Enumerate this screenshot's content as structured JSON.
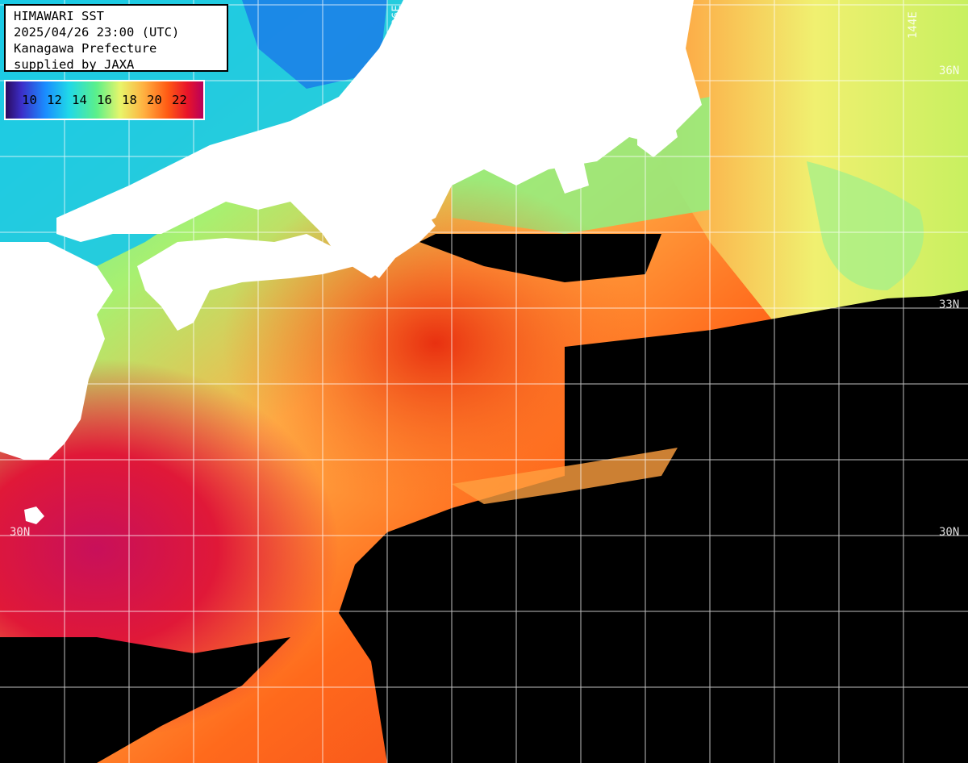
{
  "header": {
    "title": "HIMAWARI SST",
    "timestamp": "2025/04/26 23:00 (UTC)",
    "region": "Kanagawa Prefecture",
    "credit": "supplied by JAXA"
  },
  "legend": {
    "ticks": [
      "10",
      "12",
      "14",
      "16",
      "18",
      "20",
      "22"
    ],
    "colors": [
      "#2a0a5e",
      "#3c2ec8",
      "#1a8cff",
      "#20d8e8",
      "#5cf08a",
      "#e8f56a",
      "#ffb040",
      "#ff5a14",
      "#e8142a",
      "#b8005a"
    ]
  },
  "grid_labels": {
    "lon_136": "136E",
    "lon_144": "144E",
    "lat_36_right": "36N",
    "lat_33_right": "33N",
    "lat_30_left": "30N",
    "lat_30_right": "30N"
  },
  "colors": {
    "land": "#ffffff",
    "no_data": "#000000",
    "grid": "#ffffff"
  }
}
